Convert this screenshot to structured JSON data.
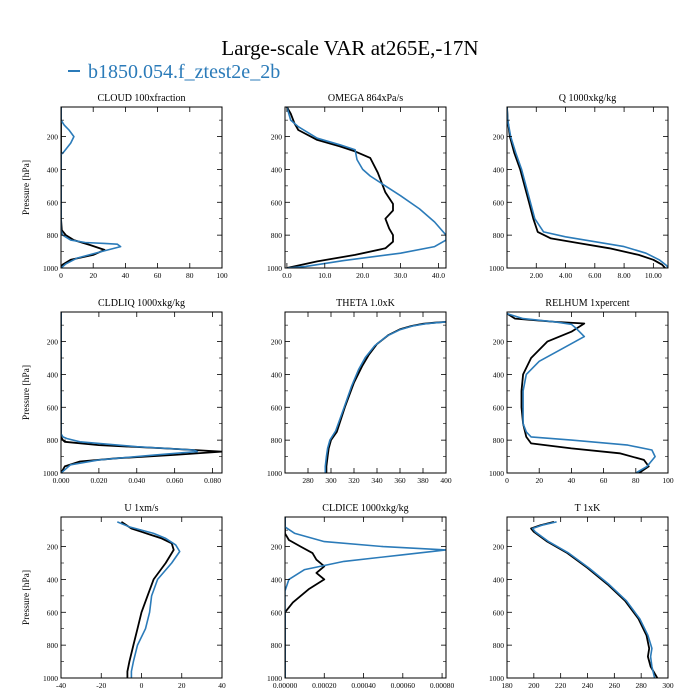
{
  "figure": {
    "title": "Large-scale VAR at265E,-17N",
    "legend_label": "b1850.054.f_ztest2e_2b",
    "colors": {
      "black_series": "#000000",
      "blue_series": "#2b7bb9"
    }
  },
  "chart_data": [
    {
      "type": "line",
      "title": "CLOUD  100xfraction",
      "ylabel": "Pressure [hPa]",
      "xlabel": "",
      "xlim": [
        0,
        100
      ],
      "ylim": [
        1000,
        20
      ],
      "y_inverted": true,
      "xticks": [
        0,
        20,
        40,
        60,
        80,
        100
      ],
      "xticklabels": [
        "0",
        "20",
        "40",
        "60",
        "80",
        "100"
      ],
      "yticks": [
        200,
        400,
        600,
        800,
        1000
      ],
      "yticklabels": [
        "200",
        "400",
        "600",
        "800",
        "1000"
      ],
      "series": [
        {
          "color": "#000000",
          "x": [
            0,
            0,
            0,
            0,
            0,
            0,
            0.5,
            3,
            8,
            18,
            27,
            20,
            6,
            1,
            0
          ],
          "y": [
            20,
            100,
            200,
            300,
            500,
            700,
            770,
            800,
            830,
            860,
            890,
            920,
            950,
            980,
            1000
          ]
        },
        {
          "color": "#2b7bb9",
          "x": [
            0,
            0,
            2,
            5,
            8,
            6,
            2,
            0,
            0,
            0,
            0,
            1,
            6,
            15,
            27,
            35,
            37,
            25,
            10,
            3,
            0
          ],
          "y": [
            20,
            100,
            130,
            160,
            200,
            240,
            290,
            310,
            500,
            700,
            770,
            800,
            830,
            845,
            850,
            855,
            870,
            900,
            940,
            975,
            1000
          ]
        }
      ]
    },
    {
      "type": "line",
      "title": "OMEGA  864xPa/s",
      "ylabel": "",
      "xlabel": "",
      "xlim": [
        -0.5,
        42
      ],
      "ylim": [
        1000,
        20
      ],
      "y_inverted": true,
      "xticks": [
        0,
        10,
        20,
        30,
        40
      ],
      "xticklabels": [
        "0.0",
        "10.0",
        "20.0",
        "30.0",
        "40.0"
      ],
      "yticks": [
        200,
        400,
        600,
        800,
        1000
      ],
      "yticklabels": [
        "200",
        "400",
        "600",
        "800",
        "1000"
      ],
      "series": [
        {
          "color": "#000000",
          "x": [
            0,
            1,
            2,
            3,
            8,
            14,
            18,
            22,
            24,
            26,
            28,
            28,
            26,
            27,
            28,
            28,
            26,
            18,
            8,
            0
          ],
          "y": [
            20,
            60,
            120,
            160,
            220,
            260,
            290,
            330,
            420,
            540,
            610,
            650,
            700,
            760,
            800,
            840,
            880,
            920,
            960,
            1000
          ]
        },
        {
          "color": "#2b7bb9",
          "x": [
            0,
            0.5,
            1,
            3,
            8,
            14,
            18,
            18.5,
            20,
            22,
            26,
            30,
            35,
            39,
            42,
            42,
            39,
            30,
            15,
            5,
            0
          ],
          "y": [
            20,
            60,
            100,
            140,
            210,
            250,
            280,
            340,
            400,
            440,
            500,
            560,
            640,
            720,
            800,
            830,
            870,
            910,
            955,
            990,
            1000
          ]
        }
      ]
    },
    {
      "type": "line",
      "title": "Q  1000xkg/kg",
      "ylabel": "",
      "xlabel": "",
      "xlim": [
        0,
        11
      ],
      "ylim": [
        1000,
        20
      ],
      "y_inverted": true,
      "xticks": [
        2,
        4,
        6,
        8,
        10
      ],
      "xticklabels": [
        "2.00",
        "4.00",
        "6.00",
        "8.00",
        "10.00"
      ],
      "yticks": [
        200,
        400,
        600,
        800,
        1000
      ],
      "yticklabels": [
        "200",
        "400",
        "600",
        "800",
        "1000"
      ],
      "series": [
        {
          "color": "#000000",
          "x": [
            0,
            0.05,
            0.2,
            0.5,
            0.9,
            1.2,
            1.5,
            1.8,
            2.1,
            3,
            5,
            7,
            9,
            10,
            10.6,
            10.8
          ],
          "y": [
            20,
            100,
            200,
            300,
            400,
            500,
            600,
            700,
            780,
            820,
            850,
            880,
            920,
            950,
            980,
            1000
          ]
        },
        {
          "color": "#2b7bb9",
          "x": [
            0,
            0.05,
            0.25,
            0.6,
            1,
            1.3,
            1.6,
            1.9,
            2.5,
            4,
            6,
            8,
            9.5,
            10.4,
            10.9,
            11
          ],
          "y": [
            20,
            100,
            200,
            300,
            400,
            500,
            600,
            700,
            780,
            810,
            840,
            870,
            910,
            950,
            985,
            1000
          ]
        }
      ]
    },
    {
      "type": "line",
      "title": "CLDLIQ  1000xkg/kg",
      "ylabel": "Pressure [hPa]",
      "xlabel": "",
      "xlim": [
        0,
        0.085
      ],
      "ylim": [
        1000,
        20
      ],
      "y_inverted": true,
      "xticks": [
        0,
        0.02,
        0.04,
        0.06,
        0.08
      ],
      "xticklabels": [
        "0.000",
        "0.020",
        "0.040",
        "0.060",
        "0.080"
      ],
      "yticks": [
        200,
        400,
        600,
        800,
        1000
      ],
      "yticklabels": [
        "200",
        "400",
        "600",
        "800",
        "1000"
      ],
      "series": [
        {
          "color": "#000000",
          "x": [
            0,
            0,
            0,
            0.001,
            0.002,
            0.02,
            0.055,
            0.085,
            0.06,
            0.03,
            0.01,
            0.002,
            0
          ],
          "y": [
            20,
            500,
            780,
            800,
            810,
            830,
            850,
            870,
            890,
            910,
            930,
            960,
            1000
          ]
        },
        {
          "color": "#2b7bb9",
          "x": [
            0,
            0,
            0,
            0.001,
            0.003,
            0.01,
            0.04,
            0.07,
            0.072,
            0.05,
            0.02,
            0.005,
            0
          ],
          "y": [
            20,
            500,
            760,
            780,
            790,
            810,
            840,
            860,
            870,
            890,
            920,
            950,
            1000
          ]
        }
      ]
    },
    {
      "type": "line",
      "title": "THETA  1.0xK",
      "ylabel": "",
      "xlabel": "",
      "xlim": [
        260,
        400
      ],
      "ylim": [
        1000,
        20
      ],
      "y_inverted": true,
      "xticks": [
        280,
        300,
        320,
        340,
        360,
        380,
        400
      ],
      "xticklabels": [
        "280",
        "300",
        "320",
        "340",
        "360",
        "380",
        "400"
      ],
      "yticks": [
        200,
        400,
        600,
        800,
        1000
      ],
      "yticklabels": [
        "200",
        "400",
        "600",
        "800",
        "1000"
      ],
      "series": [
        {
          "color": "#000000",
          "x": [
            400,
            390,
            380,
            370,
            360,
            350,
            340,
            333,
            327,
            320,
            312,
            305,
            300,
            298,
            297,
            296,
            296
          ],
          "y": [
            80,
            85,
            92,
            105,
            125,
            160,
            215,
            280,
            350,
            450,
            600,
            750,
            800,
            850,
            900,
            960,
            1000
          ]
        },
        {
          "color": "#2b7bb9",
          "x": [
            400,
            392,
            382,
            371,
            360,
            349,
            338,
            330,
            324,
            318,
            311,
            304,
            299,
            297,
            296,
            295,
            295
          ],
          "y": [
            80,
            85,
            92,
            105,
            128,
            165,
            225,
            295,
            370,
            470,
            610,
            745,
            800,
            850,
            900,
            960,
            1000
          ]
        }
      ]
    },
    {
      "type": "line",
      "title": "RELHUM  1xpercent",
      "ylabel": "",
      "xlabel": "",
      "xlim": [
        0,
        100
      ],
      "ylim": [
        1000,
        20
      ],
      "y_inverted": true,
      "xticks": [
        0,
        20,
        40,
        60,
        80,
        100
      ],
      "xticklabels": [
        "0",
        "20",
        "40",
        "60",
        "80",
        "100"
      ],
      "yticks": [
        200,
        400,
        600,
        800,
        1000
      ],
      "yticklabels": [
        "200",
        "400",
        "600",
        "800",
        "1000"
      ],
      "series": [
        {
          "color": "#000000",
          "x": [
            0,
            5,
            30,
            48,
            40,
            25,
            15,
            10,
            9,
            9,
            10,
            12,
            15,
            40,
            70,
            85,
            88,
            82
          ],
          "y": [
            30,
            60,
            80,
            90,
            140,
            200,
            300,
            400,
            500,
            600,
            700,
            780,
            820,
            850,
            880,
            920,
            960,
            1000
          ]
        },
        {
          "color": "#2b7bb9",
          "x": [
            0,
            10,
            30,
            40,
            43,
            48,
            35,
            20,
            12,
            10,
            10,
            10,
            12,
            15,
            40,
            75,
            90,
            92,
            87,
            80
          ],
          "y": [
            30,
            60,
            80,
            95,
            120,
            170,
            240,
            320,
            400,
            500,
            600,
            700,
            750,
            780,
            800,
            830,
            860,
            900,
            960,
            1000
          ]
        }
      ]
    },
    {
      "type": "line",
      "title": "U  1xm/s",
      "ylabel": "Pressure [hPa]",
      "xlabel": "",
      "xlim": [
        -40,
        40
      ],
      "ylim": [
        1000,
        20
      ],
      "y_inverted": true,
      "xticks": [
        -40,
        -20,
        0,
        20,
        40
      ],
      "xticklabels": [
        "-40",
        "-20",
        "0",
        "20",
        "40"
      ],
      "yticks": [
        200,
        400,
        600,
        800,
        1000
      ],
      "yticklabels": [
        "200",
        "400",
        "600",
        "800",
        "1000"
      ],
      "series": [
        {
          "color": "#000000",
          "x": [
            -10,
            -5,
            0,
            5,
            10,
            15,
            16,
            12,
            6,
            3,
            0,
            -2,
            -4,
            -6,
            -7,
            -7
          ],
          "y": [
            50,
            90,
            110,
            130,
            150,
            180,
            220,
            300,
            400,
            500,
            600,
            700,
            800,
            900,
            960,
            1000
          ]
        },
        {
          "color": "#2b7bb9",
          "x": [
            -12,
            -6,
            0,
            6,
            12,
            17,
            19,
            15,
            8,
            5,
            4,
            2,
            -2,
            -4,
            -5,
            -5
          ],
          "y": [
            50,
            80,
            100,
            120,
            150,
            190,
            230,
            300,
            400,
            500,
            600,
            700,
            800,
            900,
            960,
            1000
          ]
        }
      ]
    },
    {
      "type": "line",
      "title": "CLDICE  1000xkg/kg",
      "ylabel": "",
      "xlabel": "",
      "xlim": [
        0,
        0.00082
      ],
      "ylim": [
        1000,
        20
      ],
      "y_inverted": true,
      "xticks": [
        0,
        0.0002,
        0.0004,
        0.0006,
        0.0008
      ],
      "xticklabels": [
        "0.00000",
        "0.00020",
        "0.00040",
        "0.00060",
        "0.00080"
      ],
      "yticks": [
        200,
        400,
        600,
        800,
        1000
      ],
      "yticklabels": [
        "200",
        "400",
        "600",
        "800",
        "1000"
      ],
      "series": [
        {
          "color": "#000000",
          "x": [
            0,
            0,
            2e-05,
            8e-05,
            0.00014,
            0.00016,
            0.0002,
            0.00016,
            0.0002,
            0.00012,
            4e-05,
            0,
            0
          ],
          "y": [
            20,
            120,
            160,
            200,
            240,
            280,
            320,
            360,
            400,
            460,
            540,
            600,
            1000
          ]
        },
        {
          "color": "#2b7bb9",
          "x": [
            0,
            0,
            5e-05,
            0.0002,
            0.0005,
            0.00082,
            0.0006,
            0.0003,
            0.0001,
            2e-05,
            0,
            0
          ],
          "y": [
            20,
            80,
            120,
            170,
            200,
            220,
            250,
            290,
            340,
            400,
            470,
            1000
          ]
        }
      ]
    },
    {
      "type": "line",
      "title": "T  1xK",
      "ylabel": "",
      "xlabel": "",
      "xlim": [
        180,
        300
      ],
      "ylim": [
        1000,
        20
      ],
      "y_inverted": true,
      "xticks": [
        180,
        200,
        220,
        240,
        260,
        280,
        300
      ],
      "xticklabels": [
        "180",
        "200",
        "220",
        "240",
        "260",
        "280",
        "300"
      ],
      "yticks": [
        200,
        400,
        600,
        800,
        1000
      ],
      "yticklabels": [
        "200",
        "400",
        "600",
        "800",
        "1000"
      ],
      "series": [
        {
          "color": "#000000",
          "x": [
            215,
            205,
            198,
            200,
            210,
            225,
            240,
            255,
            268,
            278,
            284,
            286,
            285,
            287,
            292
          ],
          "y": [
            50,
            70,
            90,
            110,
            170,
            240,
            330,
            430,
            530,
            640,
            740,
            820,
            870,
            930,
            1000
          ]
        },
        {
          "color": "#2b7bb9",
          "x": [
            217,
            206,
            199,
            201,
            211,
            226,
            241,
            256,
            269,
            279,
            285,
            288,
            287,
            288,
            290
          ],
          "y": [
            50,
            70,
            90,
            110,
            170,
            240,
            330,
            430,
            530,
            640,
            740,
            820,
            870,
            930,
            1000
          ]
        }
      ]
    }
  ]
}
